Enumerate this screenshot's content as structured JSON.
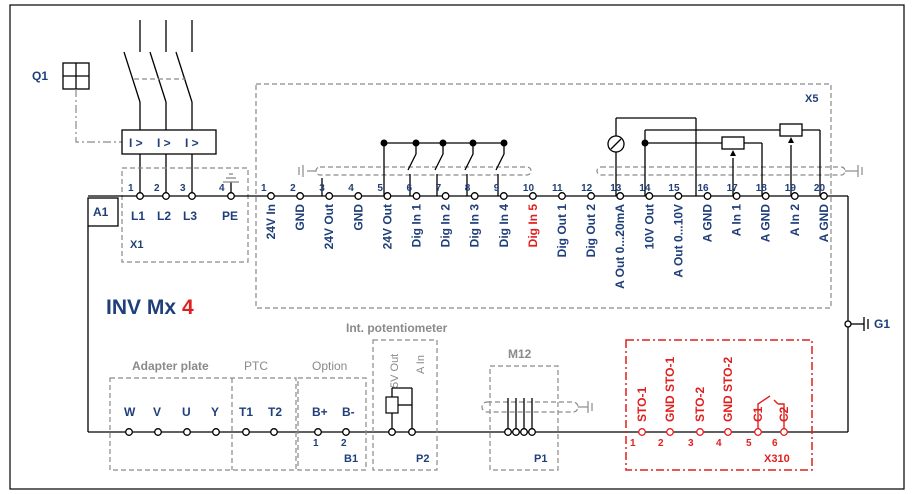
{
  "device": {
    "name": "INV Mx",
    "number": "4",
    "id": "A1"
  },
  "q1": "Q1",
  "breaker_labels": [
    "I >",
    "I >",
    "I >"
  ],
  "x1": {
    "name": "X1",
    "terminals": [
      {
        "num": "1",
        "label": "L1"
      },
      {
        "num": "2",
        "label": "L2"
      },
      {
        "num": "3",
        "label": "L3"
      },
      {
        "num": "4",
        "label": "PE"
      }
    ]
  },
  "x5": {
    "name": "X5",
    "terminals": [
      {
        "num": "1",
        "label": "24V In"
      },
      {
        "num": "2",
        "label": "GND"
      },
      {
        "num": "3",
        "label": "24V Out"
      },
      {
        "num": "4",
        "label": "GND"
      },
      {
        "num": "5",
        "label": "24V Out"
      },
      {
        "num": "6",
        "label": "Dig In 1"
      },
      {
        "num": "7",
        "label": "Dig In 2"
      },
      {
        "num": "8",
        "label": "Dig In 3"
      },
      {
        "num": "9",
        "label": "Dig In 4"
      },
      {
        "num": "10",
        "label": "Dig In 5",
        "highlight": true
      },
      {
        "num": "11",
        "label": "Dig Out 1"
      },
      {
        "num": "12",
        "label": "Dig Out 2"
      },
      {
        "num": "13",
        "label": "A Out 0...20mA"
      },
      {
        "num": "14",
        "label": "10V Out"
      },
      {
        "num": "15",
        "label": "A Out 0...10V"
      },
      {
        "num": "16",
        "label": "A GND"
      },
      {
        "num": "17",
        "label": "A In 1"
      },
      {
        "num": "18",
        "label": "A GND"
      },
      {
        "num": "19",
        "label": "A In 2"
      },
      {
        "num": "20",
        "label": "A GND"
      }
    ]
  },
  "g1": "G1",
  "adapter_plate": {
    "title": "Adapter plate",
    "labels": [
      "W",
      "V",
      "U",
      "Y"
    ]
  },
  "ptc": {
    "title": "PTC",
    "labels": [
      "T1",
      "T2"
    ]
  },
  "option": {
    "title": "Option",
    "labels": [
      "B+",
      "B-"
    ],
    "nums": [
      "1",
      "2"
    ],
    "name": "B1"
  },
  "potentiometer": {
    "title": "Int. potentiometer",
    "labels": [
      "5V Out",
      "A In"
    ],
    "name": "P2"
  },
  "m12": {
    "title": "M12",
    "name": "P1"
  },
  "x310": {
    "name": "X310",
    "terminals": [
      {
        "num": "1",
        "label": "STO-1"
      },
      {
        "num": "2",
        "label": "GND STO-1"
      },
      {
        "num": "3",
        "label": "STO-2"
      },
      {
        "num": "4",
        "label": "GND STO-2"
      },
      {
        "num": "5",
        "label": "C1"
      },
      {
        "num": "6",
        "label": "C2"
      }
    ]
  }
}
